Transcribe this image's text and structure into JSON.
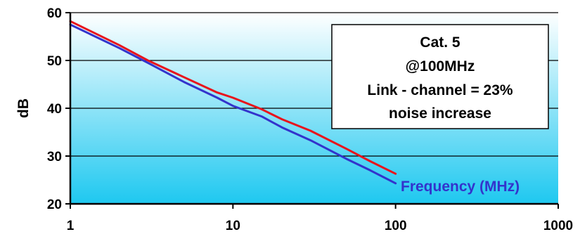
{
  "chart_data": {
    "type": "line",
    "x_scale": "log",
    "xlim": [
      1,
      1000
    ],
    "ylim": [
      20,
      60
    ],
    "y_ticks": [
      20,
      30,
      40,
      50,
      60
    ],
    "x_ticks": [
      1,
      10,
      100,
      1000
    ],
    "x_tick_labels": [
      "1",
      "10",
      "100",
      "1000"
    ],
    "y_tick_labels": [
      "20",
      "30",
      "40",
      "50",
      "60"
    ],
    "ylabel": "dB",
    "xlabel": "",
    "grid": "horizontal",
    "background": "gradient white to cyan (#ffffff top, #1ec8f0 bottom)",
    "annotation": {
      "lines": [
        "Cat. 5",
        "@100MHz",
        "Link - channel = 23%",
        "noise increase"
      ]
    },
    "series_label": "Frequency (MHz)",
    "series": [
      {
        "color": "#e8141c",
        "x": [
          1,
          2,
          3,
          5,
          8,
          10,
          15,
          20,
          30,
          50,
          70,
          100
        ],
        "y": [
          58.2,
          53.2,
          50.0,
          46.5,
          43.3,
          42.2,
          39.8,
          37.7,
          35.3,
          31.5,
          28.9,
          26.3
        ]
      },
      {
        "color": "#3333cc",
        "x": [
          1,
          2,
          3,
          5,
          8,
          10,
          15,
          20,
          30,
          50,
          70,
          100
        ],
        "y": [
          57.5,
          52.6,
          49.5,
          45.5,
          42.2,
          40.5,
          38.3,
          36.0,
          33.3,
          29.4,
          27.0,
          24.3
        ]
      }
    ]
  }
}
